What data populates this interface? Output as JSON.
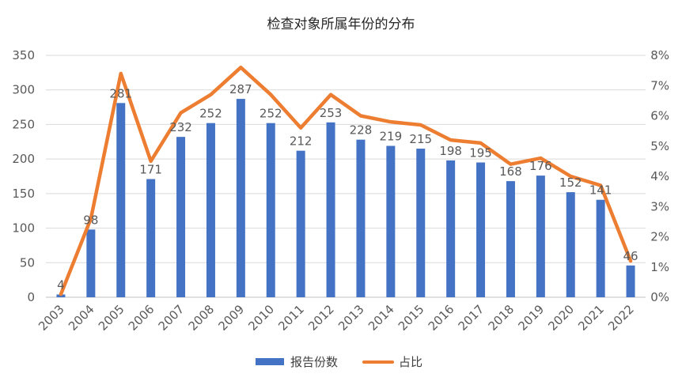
{
  "chart_data": {
    "type": "bar",
    "title": "检查对象所属年份的分布",
    "categories": [
      "2003",
      "2004",
      "2005",
      "2006",
      "2007",
      "2008",
      "2009",
      "2010",
      "2011",
      "2012",
      "2013",
      "2014",
      "2015",
      "2016",
      "2017",
      "2018",
      "2019",
      "2020",
      "2021",
      "2022"
    ],
    "series": [
      {
        "name": "报告份数",
        "type": "bar",
        "axis": "left",
        "color": "#4472C4",
        "values": [
          4,
          98,
          281,
          171,
          232,
          252,
          287,
          252,
          212,
          253,
          228,
          219,
          215,
          198,
          195,
          168,
          176,
          152,
          141,
          46
        ]
      },
      {
        "name": "占比",
        "type": "line",
        "axis": "right",
        "color": "#ED7D31",
        "values": [
          0.1,
          2.6,
          7.4,
          4.5,
          6.1,
          6.7,
          7.6,
          6.7,
          5.6,
          6.7,
          6.0,
          5.8,
          5.7,
          5.2,
          5.1,
          4.4,
          4.6,
          4.0,
          3.7,
          1.2
        ]
      }
    ],
    "y_left": {
      "ylim": [
        0,
        350
      ],
      "ticks": [
        "0",
        "50",
        "100",
        "150",
        "200",
        "250",
        "300",
        "350"
      ]
    },
    "y_right": {
      "ylim": [
        0,
        8
      ],
      "ticks": [
        "0%",
        "1%",
        "2%",
        "3%",
        "4%",
        "5%",
        "6%",
        "7%",
        "8%"
      ]
    },
    "grid": true,
    "legend": "bottom",
    "data_labels": [
      "4",
      "98",
      "281",
      "171",
      "232",
      "252",
      "287",
      "252",
      "212",
      "253",
      "228",
      "219",
      "215",
      "198",
      "195",
      "168",
      "176",
      "152",
      "141",
      "46"
    ]
  }
}
